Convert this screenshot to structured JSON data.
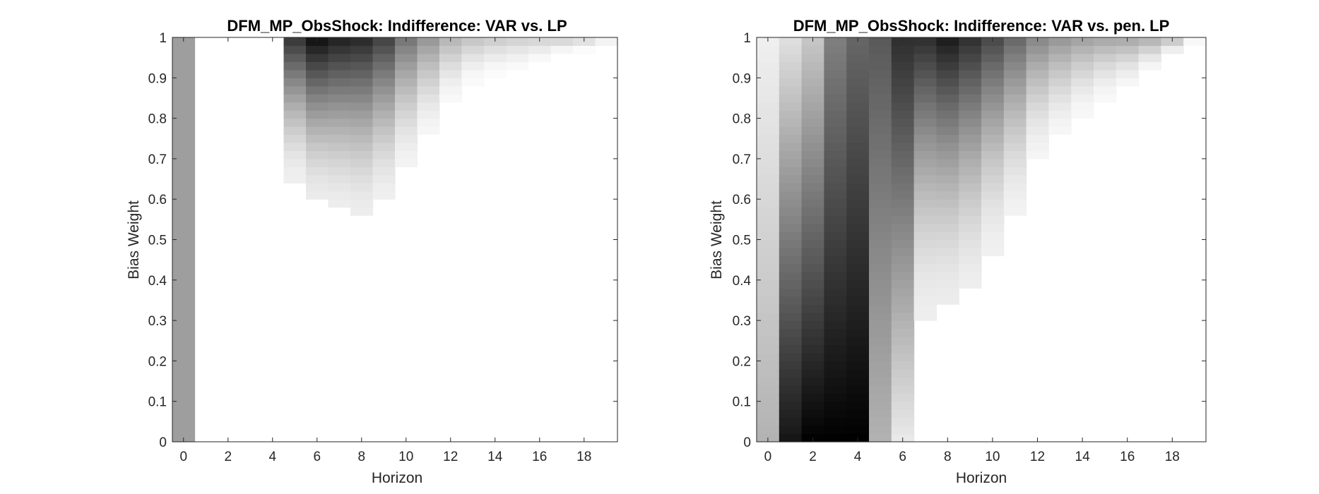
{
  "chart_data": [
    {
      "type": "heatmap",
      "title": "DFM_MP_ObsShock: Indifference: VAR vs. LP",
      "xlabel": "Horizon",
      "ylabel": "Bias Weight",
      "xlim": [
        -0.5,
        19.5
      ],
      "ylim": [
        0,
        1
      ],
      "xticks": [
        "0",
        "2",
        "4",
        "6",
        "8",
        "10",
        "12",
        "14",
        "16",
        "18"
      ],
      "yticks": [
        "0",
        "0.1",
        "0.2",
        "0.3",
        "0.4",
        "0.5",
        "0.6",
        "0.7",
        "0.8",
        "0.9",
        "1"
      ],
      "colormap": "gray (dark = high indifference)",
      "columns": [
        {
          "h": 0,
          "min_weight": 0.0,
          "max_weight": 1.0,
          "mode": "const",
          "value": 0.38
        },
        {
          "h": 1,
          "min_weight": 0.993,
          "max_weight": 1.0,
          "mode": "ramp",
          "value": 0.03
        },
        {
          "h": 2,
          "min_weight": 0.993,
          "max_weight": 1.0,
          "mode": "ramp",
          "value": 0.03
        },
        {
          "h": 3,
          "min_weight": 0.993,
          "max_weight": 1.0,
          "mode": "ramp",
          "value": 0.03
        },
        {
          "h": 4,
          "min_weight": 0.993,
          "max_weight": 1.0,
          "mode": "ramp",
          "value": 0.05
        },
        {
          "h": 5,
          "min_weight": 0.65,
          "max_weight": 1.0,
          "mode": "ramp",
          "value": 0.8
        },
        {
          "h": 6,
          "min_weight": 0.6,
          "max_weight": 1.0,
          "mode": "ramp",
          "value": 0.95
        },
        {
          "h": 7,
          "min_weight": 0.58,
          "max_weight": 1.0,
          "mode": "ramp",
          "value": 0.88
        },
        {
          "h": 8,
          "min_weight": 0.56,
          "max_weight": 1.0,
          "mode": "ramp",
          "value": 0.85
        },
        {
          "h": 9,
          "min_weight": 0.6,
          "max_weight": 1.0,
          "mode": "ramp",
          "value": 0.75
        },
        {
          "h": 10,
          "min_weight": 0.68,
          "max_weight": 1.0,
          "mode": "ramp",
          "value": 0.55
        },
        {
          "h": 11,
          "min_weight": 0.76,
          "max_weight": 1.0,
          "mode": "ramp",
          "value": 0.42
        },
        {
          "h": 12,
          "min_weight": 0.84,
          "max_weight": 1.0,
          "mode": "ramp",
          "value": 0.3
        },
        {
          "h": 13,
          "min_weight": 0.89,
          "max_weight": 1.0,
          "mode": "ramp",
          "value": 0.25
        },
        {
          "h": 14,
          "min_weight": 0.91,
          "max_weight": 1.0,
          "mode": "ramp",
          "value": 0.22
        },
        {
          "h": 15,
          "min_weight": 0.92,
          "max_weight": 1.0,
          "mode": "ramp",
          "value": 0.2
        },
        {
          "h": 16,
          "min_weight": 0.94,
          "max_weight": 1.0,
          "mode": "ramp",
          "value": 0.2
        },
        {
          "h": 17,
          "min_weight": 0.96,
          "max_weight": 1.0,
          "mode": "ramp",
          "value": 0.22
        },
        {
          "h": 18,
          "min_weight": 0.97,
          "max_weight": 1.0,
          "mode": "ramp",
          "value": 0.2
        },
        {
          "h": 19,
          "min_weight": 0.98,
          "max_weight": 1.0,
          "mode": "ramp",
          "value": 0.12
        }
      ]
    },
    {
      "type": "heatmap",
      "title": "DFM_MP_ObsShock: Indifference: VAR vs. pen. LP",
      "xlabel": "Horizon",
      "ylabel": "Bias Weight",
      "xlim": [
        -0.5,
        19.5
      ],
      "ylim": [
        0,
        1
      ],
      "xticks": [
        "0",
        "2",
        "4",
        "6",
        "8",
        "10",
        "12",
        "14",
        "16",
        "18"
      ],
      "yticks": [
        "0",
        "0.1",
        "0.2",
        "0.3",
        "0.4",
        "0.5",
        "0.6",
        "0.7",
        "0.8",
        "0.9",
        "1"
      ],
      "colormap": "gray (dark = high indifference)",
      "columns": [
        {
          "h": 0,
          "min_weight": 0.0,
          "max_weight": 1.0,
          "mode": "grad",
          "value_bottom": 0.3,
          "value_top": 0.06
        },
        {
          "h": 1,
          "min_weight": 0.0,
          "max_weight": 1.0,
          "mode": "grad",
          "value_bottom": 0.92,
          "value_top": 0.12
        },
        {
          "h": 2,
          "min_weight": 0.0,
          "max_weight": 1.0,
          "mode": "grad",
          "value_bottom": 1.0,
          "value_top": 0.22
        },
        {
          "h": 3,
          "min_weight": 0.0,
          "max_weight": 1.0,
          "mode": "grad",
          "value_bottom": 1.0,
          "value_top": 0.5
        },
        {
          "h": 4,
          "min_weight": 0.0,
          "max_weight": 1.0,
          "mode": "grad",
          "value_bottom": 1.0,
          "value_top": 0.6
        },
        {
          "h": 5,
          "min_weight": 0.0,
          "max_weight": 1.0,
          "mode": "grad",
          "value_bottom": 0.3,
          "value_top": 0.65
        },
        {
          "h": 6,
          "min_weight": 0.0,
          "max_weight": 1.0,
          "mode": "grad",
          "value_bottom": 0.08,
          "value_top": 0.82
        },
        {
          "h": 7,
          "min_weight": 0.31,
          "max_weight": 1.0,
          "mode": "ramp",
          "value": 0.82
        },
        {
          "h": 8,
          "min_weight": 0.34,
          "max_weight": 1.0,
          "mode": "ramp",
          "value": 0.9
        },
        {
          "h": 9,
          "min_weight": 0.38,
          "max_weight": 1.0,
          "mode": "ramp",
          "value": 0.82
        },
        {
          "h": 10,
          "min_weight": 0.47,
          "max_weight": 1.0,
          "mode": "ramp",
          "value": 0.72
        },
        {
          "h": 11,
          "min_weight": 0.56,
          "max_weight": 1.0,
          "mode": "ramp",
          "value": 0.6
        },
        {
          "h": 12,
          "min_weight": 0.7,
          "max_weight": 1.0,
          "mode": "ramp",
          "value": 0.48
        },
        {
          "h": 13,
          "min_weight": 0.76,
          "max_weight": 1.0,
          "mode": "ramp",
          "value": 0.42
        },
        {
          "h": 14,
          "min_weight": 0.81,
          "max_weight": 1.0,
          "mode": "ramp",
          "value": 0.38
        },
        {
          "h": 15,
          "min_weight": 0.85,
          "max_weight": 1.0,
          "mode": "ramp",
          "value": 0.36
        },
        {
          "h": 16,
          "min_weight": 0.88,
          "max_weight": 1.0,
          "mode": "ramp",
          "value": 0.36
        },
        {
          "h": 17,
          "min_weight": 0.92,
          "max_weight": 1.0,
          "mode": "ramp",
          "value": 0.34
        },
        {
          "h": 18,
          "min_weight": 0.955,
          "max_weight": 1.0,
          "mode": "ramp",
          "value": 0.28
        },
        {
          "h": 19,
          "min_weight": 0.985,
          "max_weight": 1.0,
          "mode": "ramp",
          "value": 0.12
        }
      ]
    }
  ]
}
